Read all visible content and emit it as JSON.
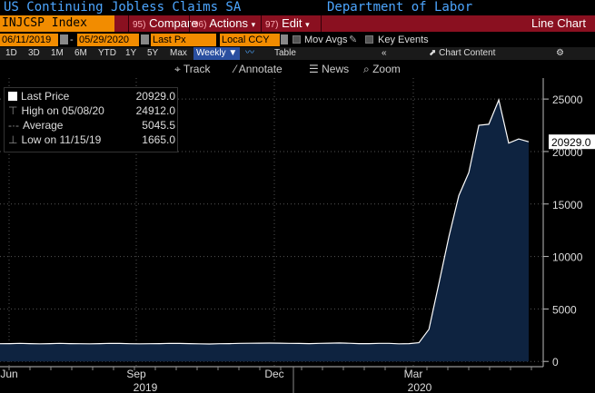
{
  "window": {
    "title": "US Continuing Jobless Claims SA",
    "source": "Department of Labor"
  },
  "menubar": {
    "ticker": "INJCSP Index",
    "compare_num": "95)",
    "compare_label": "Compare",
    "actions_num": "96)",
    "actions_label": "Actions",
    "edit_num": "97)",
    "edit_label": "Edit",
    "chart_type": "Line Chart"
  },
  "settings": {
    "start_date": "06/11/2019",
    "end_date": "05/29/2020",
    "field": "Last Px",
    "currency": "Local CCY",
    "mov_avgs": "Mov Avgs",
    "key_events": "Key Events"
  },
  "ranges": [
    "1D",
    "3D",
    "1M",
    "6M",
    "YTD",
    "1Y",
    "5Y",
    "Max"
  ],
  "frequency": "Weekly",
  "table_label": "Table",
  "chart_content_label": "Chart Content",
  "tools": {
    "track": "Track",
    "annotate": "Annotate",
    "news": "News",
    "zoom": "Zoom"
  },
  "legend": {
    "last_label": "Last Price",
    "last_value": "20929.0",
    "high_label": "High on 05/08/20",
    "high_value": "24912.0",
    "avg_label": "Average",
    "avg_value": "5045.5",
    "low_label": "Low on 11/15/19",
    "low_value": "1665.0"
  },
  "colors": {
    "accent_orange": "#f28c00",
    "menu_red": "#8a1020",
    "title_blue": "#4da6ff",
    "series_fill": "#0e2340",
    "series_line": "#ffffff"
  },
  "chart_data": {
    "type": "area",
    "series": [
      {
        "name": "Last Price",
        "values": [
          1690,
          1700,
          1720,
          1700,
          1680,
          1700,
          1720,
          1700,
          1690,
          1680,
          1700,
          1720,
          1710,
          1690,
          1680,
          1690,
          1700,
          1720,
          1710,
          1700,
          1680,
          1665,
          1690,
          1700,
          1720,
          1730,
          1740,
          1750,
          1740,
          1720,
          1710,
          1700,
          1720,
          1740,
          1760,
          1730,
          1700,
          1700,
          1720,
          1720,
          1680,
          1700,
          1780,
          3060,
          7450,
          11900,
          15800,
          18000,
          22500,
          22600,
          24912,
          20800,
          21200,
          20929
        ]
      }
    ],
    "x_ticks": [
      "Jun",
      "Sep",
      "Dec",
      "Mar"
    ],
    "year_labels": [
      "2019",
      "2020"
    ],
    "y_ticks": [
      "0",
      "5000",
      "10000",
      "15000",
      "20000",
      "25000"
    ],
    "ylim": [
      -500,
      27000
    ],
    "last_value_label": "20929.0",
    "grid": true
  }
}
